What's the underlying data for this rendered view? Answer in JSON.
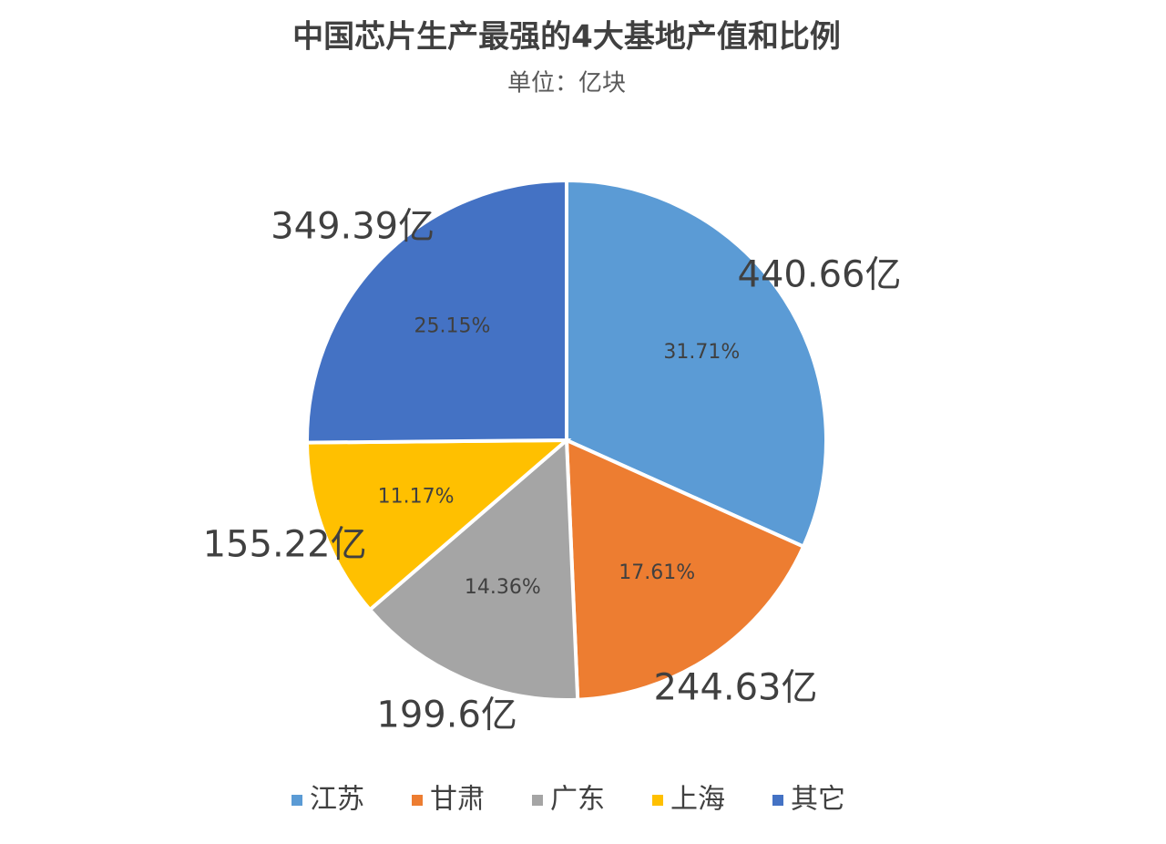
{
  "chart_data": {
    "type": "pie",
    "title": "中国芯片生产最强的4大基地产值和比例",
    "subtitle": "单位：亿块",
    "categories": [
      "江苏",
      "甘肃",
      "广东",
      "上海",
      "其它"
    ],
    "values": [
      440.66,
      244.63,
      199.6,
      155.22,
      349.39
    ],
    "value_labels": [
      "440.66亿",
      "244.63亿",
      "199.6亿",
      "155.22亿",
      "349.39亿"
    ],
    "percents": [
      31.71,
      17.61,
      14.36,
      11.17,
      25.15
    ],
    "percent_labels": [
      "31.71%",
      "17.61%",
      "14.36%",
      "11.17%",
      "25.15%"
    ],
    "colors": [
      "#5b9bd5",
      "#ed7d31",
      "#a5a5a5",
      "#ffc000",
      "#4472c4"
    ],
    "legend": "bottom"
  }
}
